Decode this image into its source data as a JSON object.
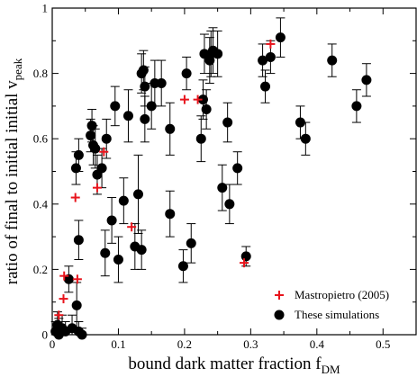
{
  "chart_data": {
    "type": "scatter",
    "title": "",
    "xlabel": {
      "main": "bound dark matter fraction f",
      "sub": "DM"
    },
    "ylabel": {
      "main": "ratio of final to initial initial v",
      "sub": "peak"
    },
    "xlim": [
      0,
      0.55
    ],
    "ylim": [
      0,
      1
    ],
    "xticks": [
      0,
      0.1,
      0.2,
      0.3,
      0.4,
      0.5
    ],
    "xtick_labels": [
      "0",
      "0.1",
      "0.2",
      "0.3",
      "0.4",
      "0.5"
    ],
    "yticks": [
      0,
      0.2,
      0.4,
      0.6,
      0.8,
      1
    ],
    "ytick_labels": [
      "0",
      "0.2",
      "0.4",
      "0.6",
      "0.8",
      "1"
    ],
    "grid": false,
    "legend_position": "bottom-right",
    "series": [
      {
        "name": "Mastropietro (2005)",
        "marker": "plus",
        "color": "#e8141c",
        "points": [
          {
            "x": 0.01,
            "y": 0.06
          },
          {
            "x": 0.017,
            "y": 0.11
          },
          {
            "x": 0.018,
            "y": 0.18
          },
          {
            "x": 0.035,
            "y": 0.42
          },
          {
            "x": 0.038,
            "y": 0.17
          },
          {
            "x": 0.068,
            "y": 0.45
          },
          {
            "x": 0.078,
            "y": 0.56
          },
          {
            "x": 0.12,
            "y": 0.33
          },
          {
            "x": 0.2,
            "y": 0.72
          },
          {
            "x": 0.22,
            "y": 0.72
          },
          {
            "x": 0.29,
            "y": 0.22
          },
          {
            "x": 0.33,
            "y": 0.89
          }
        ]
      },
      {
        "name": "These simulations",
        "marker": "circle",
        "color": "#000000",
        "points": [
          {
            "x": 0.005,
            "y": 0.01,
            "err": 0.03
          },
          {
            "x": 0.008,
            "y": 0.03,
            "err": 0.04
          },
          {
            "x": 0.01,
            "y": 0.0,
            "err": 0.05
          },
          {
            "x": 0.015,
            "y": 0.02,
            "err": 0.04
          },
          {
            "x": 0.02,
            "y": 0.01,
            "err": 0.03
          },
          {
            "x": 0.03,
            "y": 0.02,
            "err": 0.04
          },
          {
            "x": 0.04,
            "y": 0.01,
            "err": 0.03
          },
          {
            "x": 0.045,
            "y": 0.0,
            "err": 0.02
          },
          {
            "x": 0.025,
            "y": 0.17,
            "err": 0.04
          },
          {
            "x": 0.037,
            "y": 0.09,
            "err": 0.07
          },
          {
            "x": 0.04,
            "y": 0.29,
            "err": 0.06
          },
          {
            "x": 0.036,
            "y": 0.51,
            "err": 0.05
          },
          {
            "x": 0.04,
            "y": 0.55,
            "err": 0.05
          },
          {
            "x": 0.058,
            "y": 0.61,
            "err": 0.05
          },
          {
            "x": 0.06,
            "y": 0.64,
            "err": 0.05
          },
          {
            "x": 0.062,
            "y": 0.58,
            "err": 0.06
          },
          {
            "x": 0.065,
            "y": 0.57,
            "err": 0.06
          },
          {
            "x": 0.068,
            "y": 0.49,
            "err": 0.06
          },
          {
            "x": 0.075,
            "y": 0.51,
            "err": 0.06
          },
          {
            "x": 0.082,
            "y": 0.6,
            "err": 0.06
          },
          {
            "x": 0.08,
            "y": 0.25,
            "err": 0.07
          },
          {
            "x": 0.09,
            "y": 0.35,
            "err": 0.07
          },
          {
            "x": 0.095,
            "y": 0.7,
            "err": 0.06
          },
          {
            "x": 0.1,
            "y": 0.23,
            "err": 0.07
          },
          {
            "x": 0.108,
            "y": 0.41,
            "err": 0.07
          },
          {
            "x": 0.115,
            "y": 0.67,
            "err": 0.08
          },
          {
            "x": 0.125,
            "y": 0.27,
            "err": 0.07
          },
          {
            "x": 0.13,
            "y": 0.43,
            "err": 0.12
          },
          {
            "x": 0.135,
            "y": 0.26,
            "err": 0.06
          },
          {
            "x": 0.135,
            "y": 0.8,
            "err": 0.06
          },
          {
            "x": 0.138,
            "y": 0.81,
            "err": 0.06
          },
          {
            "x": 0.14,
            "y": 0.76,
            "err": 0.06
          },
          {
            "x": 0.14,
            "y": 0.66,
            "err": 0.07
          },
          {
            "x": 0.15,
            "y": 0.7,
            "err": 0.07
          },
          {
            "x": 0.155,
            "y": 0.77,
            "err": 0.07
          },
          {
            "x": 0.165,
            "y": 0.77,
            "err": 0.07
          },
          {
            "x": 0.178,
            "y": 0.63,
            "err": 0.08
          },
          {
            "x": 0.178,
            "y": 0.37,
            "err": 0.07
          },
          {
            "x": 0.198,
            "y": 0.21,
            "err": 0.05
          },
          {
            "x": 0.203,
            "y": 0.8,
            "err": 0.05
          },
          {
            "x": 0.21,
            "y": 0.28,
            "err": 0.06
          },
          {
            "x": 0.225,
            "y": 0.6,
            "err": 0.07
          },
          {
            "x": 0.228,
            "y": 0.72,
            "err": 0.06
          },
          {
            "x": 0.23,
            "y": 0.86,
            "err": 0.06
          },
          {
            "x": 0.233,
            "y": 0.69,
            "err": 0.06
          },
          {
            "x": 0.238,
            "y": 0.84,
            "err": 0.07
          },
          {
            "x": 0.24,
            "y": 0.86,
            "err": 0.07
          },
          {
            "x": 0.243,
            "y": 0.87,
            "err": 0.07
          },
          {
            "x": 0.25,
            "y": 0.86,
            "err": 0.07
          },
          {
            "x": 0.257,
            "y": 0.45,
            "err": 0.07
          },
          {
            "x": 0.265,
            "y": 0.65,
            "err": 0.06
          },
          {
            "x": 0.268,
            "y": 0.4,
            "err": 0.06
          },
          {
            "x": 0.28,
            "y": 0.51,
            "err": 0.05
          },
          {
            "x": 0.293,
            "y": 0.24,
            "err": 0.03
          },
          {
            "x": 0.318,
            "y": 0.84,
            "err": 0.05
          },
          {
            "x": 0.322,
            "y": 0.76,
            "err": 0.05
          },
          {
            "x": 0.33,
            "y": 0.85,
            "err": 0.05
          },
          {
            "x": 0.345,
            "y": 0.91,
            "err": 0.06
          },
          {
            "x": 0.375,
            "y": 0.65,
            "err": 0.05
          },
          {
            "x": 0.383,
            "y": 0.6,
            "err": 0.05
          },
          {
            "x": 0.423,
            "y": 0.84,
            "err": 0.05
          },
          {
            "x": 0.46,
            "y": 0.7,
            "err": 0.05
          },
          {
            "x": 0.475,
            "y": 0.78,
            "err": 0.05
          }
        ]
      }
    ]
  }
}
